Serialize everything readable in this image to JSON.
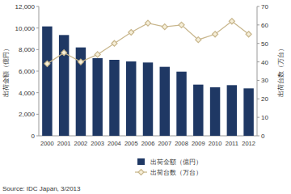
{
  "chart_data": {
    "type": "bar",
    "categories": [
      "2000",
      "2001",
      "2002",
      "2003",
      "2004",
      "2005",
      "2006",
      "2007",
      "2008",
      "2009",
      "2010",
      "2011",
      "2012"
    ],
    "y_label": "出荷金額（億円）",
    "y2_label": "出荷台数（万台）",
    "series": [
      {
        "name": "出荷金額（億円）",
        "type": "bar",
        "color": "#1f3864",
        "values": [
          10150,
          9350,
          8200,
          7200,
          7050,
          6900,
          6800,
          6400,
          5950,
          4750,
          4500,
          4700,
          4400
        ]
      },
      {
        "name": "出荷台数（万台）",
        "type": "line",
        "axis": "y2",
        "color": "#c8b68c",
        "marker": "diamond",
        "values": [
          39,
          45,
          40,
          44,
          50,
          56,
          61,
          59,
          60,
          52,
          55,
          62,
          55
        ]
      }
    ],
    "ylim": [
      0,
      12000
    ],
    "yticks": [
      0,
      {
        "value": 2000,
        "label": "2,000"
      },
      {
        "value": 4000,
        "label": "4,000"
      },
      {
        "value": 6000,
        "label": "6,000"
      },
      {
        "value": 8000,
        "label": "8,000"
      },
      {
        "value": 10000,
        "label": "10,000"
      },
      {
        "value": 12000,
        "label": "12,000"
      }
    ],
    "y2lim": [
      0,
      70
    ],
    "y2ticks": [
      0,
      10,
      20,
      30,
      40,
      50,
      60,
      70
    ],
    "grid": false,
    "legend": "bottom",
    "annotations": [
      "Source: IDC Japan, 3/2013"
    ]
  }
}
